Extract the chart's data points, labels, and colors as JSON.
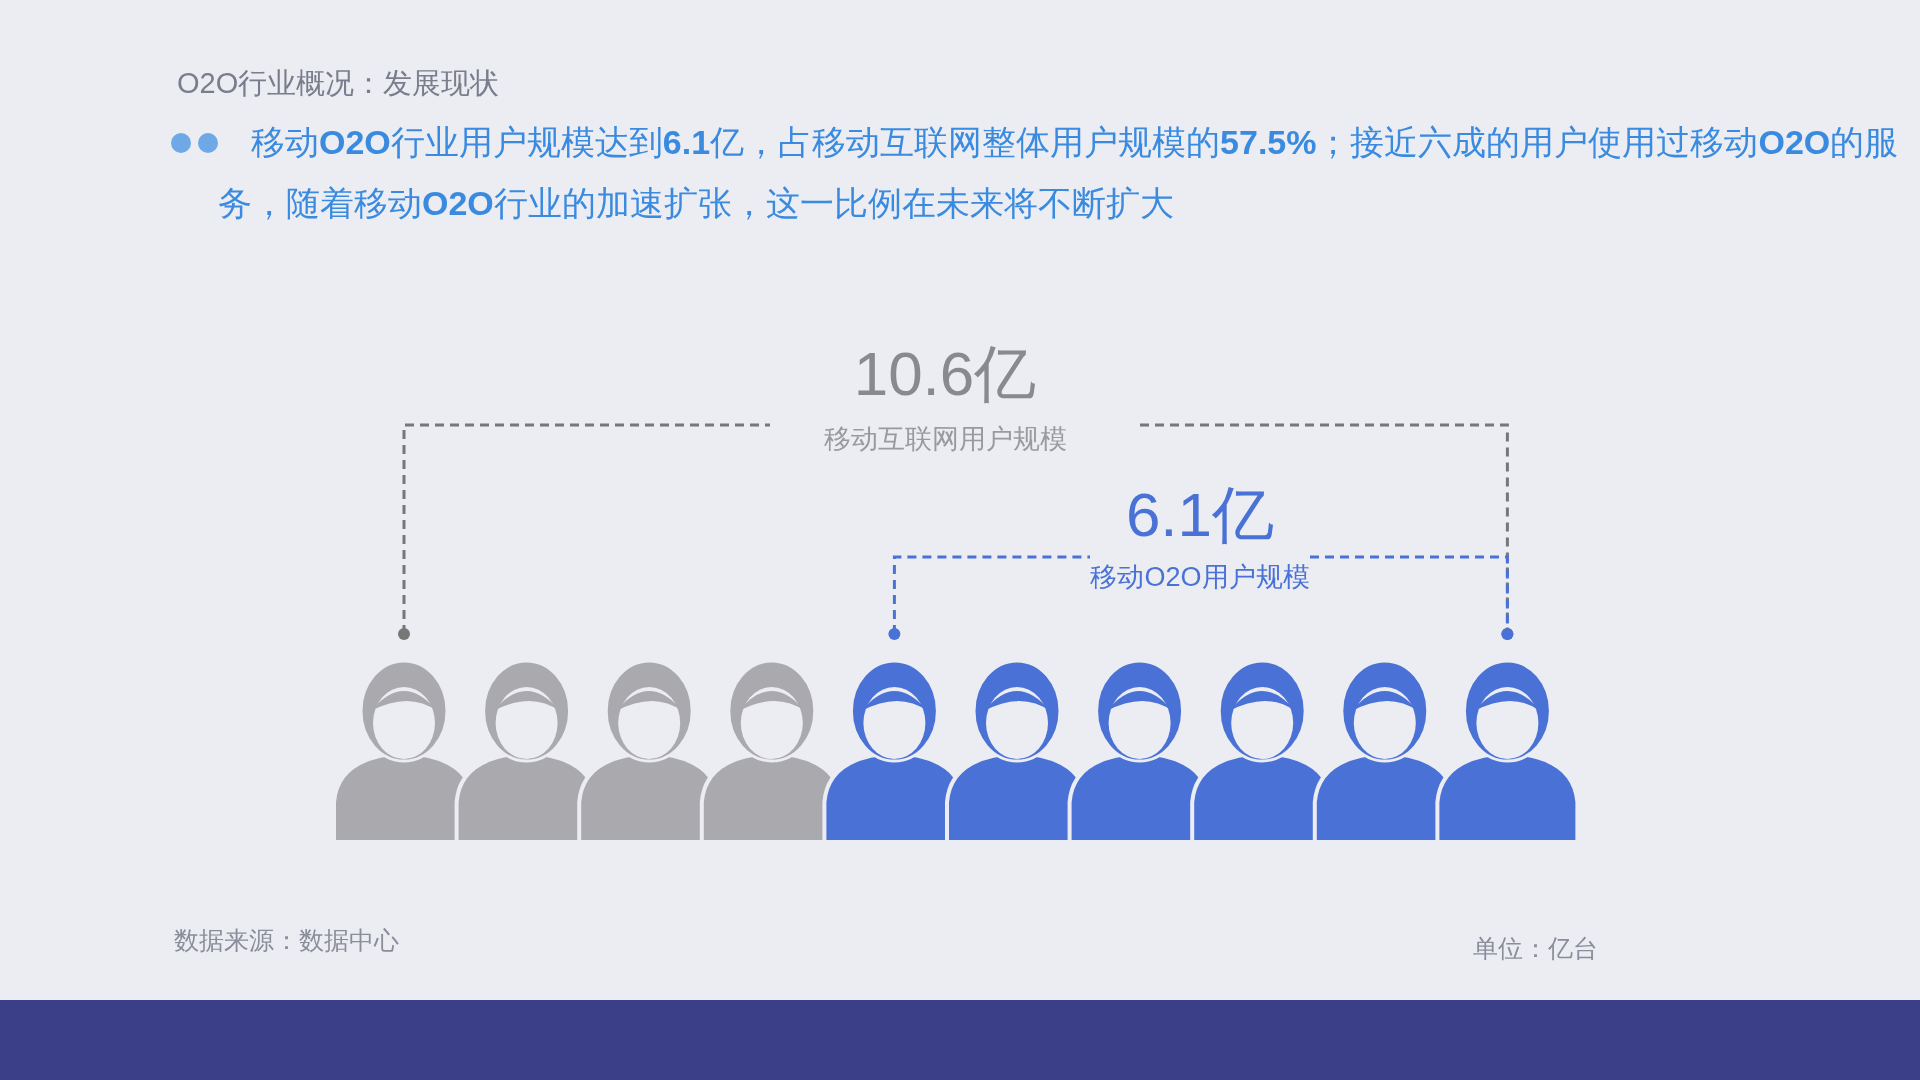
{
  "chart_data": {
    "type": "other",
    "title": "O2O行业概况：发展现状",
    "subtitle": "移动O2O行业用户规模达到6.1亿，占移动互联网整体用户规模的57.5%；接近六成的用户使用过移动O2O的服务，随着移动O2O行业的加速扩张，这一比例在未来将不断扩大",
    "categories": [
      "移动互联网用户规模",
      "移动O2O用户规模"
    ],
    "values": [
      10.6,
      6.1
    ],
    "value_labels": [
      "10.6亿",
      "6.1亿"
    ],
    "colors": [
      "#a9a9ae",
      "#4a72d6"
    ],
    "annotations": [
      "数据来源：数据中心",
      "单位：亿台"
    ]
  }
}
